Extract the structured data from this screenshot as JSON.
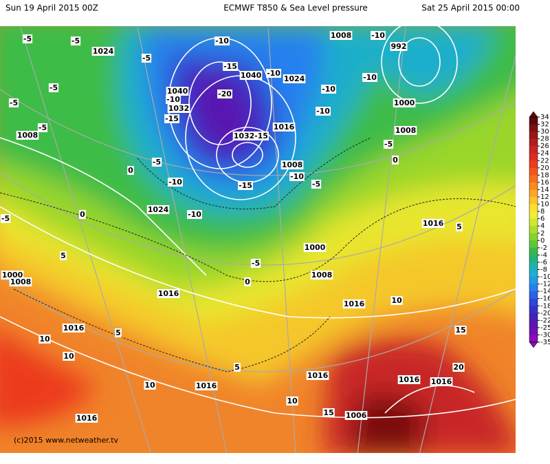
{
  "header": {
    "left": "Sun 19 April 2015 00Z",
    "center": "ECMWF T850 & Sea Level pressure",
    "right": "Sat 25 April 2015 00:00"
  },
  "footer": "(c)2015 www.netweather.tv",
  "colorbar": {
    "ticks": [
      34,
      32,
      30,
      28,
      26,
      24,
      22,
      20,
      18,
      16,
      14,
      12,
      10,
      8,
      6,
      4,
      2,
      0,
      -2,
      -4,
      -6,
      -8,
      -10,
      -12,
      -14,
      -16,
      -18,
      -20,
      -22,
      -25,
      -30,
      -35
    ],
    "colors": [
      "#5a0a0a",
      "#7a1010",
      "#96161a",
      "#b01e1e",
      "#c82626",
      "#dd2e22",
      "#ec3b1e",
      "#f25420",
      "#f56e1e",
      "#f88a20",
      "#fba624",
      "#fcc42a",
      "#fde02e",
      "#f0ee30",
      "#cfe82c",
      "#aede2a",
      "#86d42c",
      "#5ec834",
      "#38b84a",
      "#22b27a",
      "#1eb2a8",
      "#1eaecc",
      "#229ae4",
      "#2680ee",
      "#2a62e6",
      "#2c46da",
      "#3432c8",
      "#4422b8",
      "#5a18b0",
      "#7010b0",
      "#8a0cb8"
    ]
  },
  "map_labels": [
    "-5",
    "-5",
    "1024",
    "-5",
    "-10",
    "-15",
    "1040",
    "-10",
    "1024",
    "1008",
    "-10",
    "992",
    "-10",
    "-10",
    "-20",
    "1040",
    "-10",
    "1032",
    "-15",
    "-5",
    "-5",
    "-5",
    "1008",
    "1000",
    "-10",
    "1016",
    "1032",
    "-15",
    "1008",
    "-5",
    "0",
    "1008",
    "-10",
    "-5",
    "-5",
    "-10",
    "-15",
    "0",
    "-5",
    "0",
    "1024",
    "-10",
    "1016",
    "5",
    "1000",
    "-5",
    "0",
    "5",
    "1000",
    "1008",
    "1008",
    "1016",
    "1016",
    "10",
    "1016",
    "10",
    "5",
    "10",
    "15",
    "20",
    "1016",
    "1016",
    "1016",
    "5",
    "10",
    "1016",
    "10",
    "15",
    "1016",
    "1006"
  ]
}
